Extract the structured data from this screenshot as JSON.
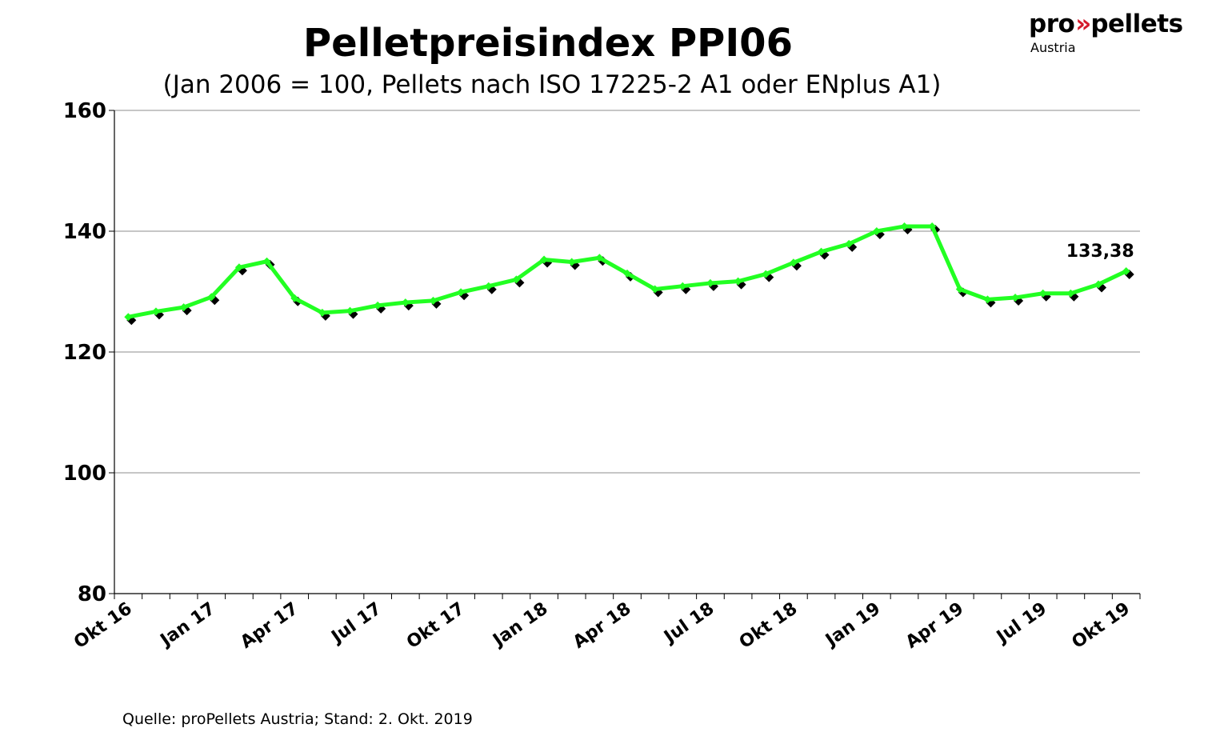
{
  "header": {
    "title": "Pelletpreisindex PPI06",
    "subtitle": "(Jan 2006 = 100, Pellets nach ISO 17225-2 A1 oder ENplus A1)"
  },
  "logo": {
    "part1": "pro",
    "mark": "»",
    "part2": "pellets",
    "sub": "Austria",
    "accent_color": "#d4192a"
  },
  "footer": {
    "source": "Quelle: proPellets Austria; Stand: 2. Okt. 2019"
  },
  "chart_data": {
    "type": "line",
    "title": "Pelletpreisindex PPI06",
    "subtitle": "(Jan 2006 = 100, Pellets nach ISO 17225-2 A1 oder ENplus A1)",
    "ylim": [
      80,
      160
    ],
    "yticks": [
      "80",
      "100",
      "120",
      "140",
      "160"
    ],
    "grid": true,
    "x_tick_labels": [
      "Okt 16",
      "Jan 17",
      "Apr 17",
      "Jul 17",
      "Okt 17",
      "Jan 18",
      "Apr 18",
      "Jul 18",
      "Okt 18",
      "Jan 19",
      "Apr 19",
      "Jul 19",
      "Okt 19"
    ],
    "line_color": "#22ff22",
    "marker_color": "#000000",
    "series": [
      {
        "values": [
          125.8,
          126.7,
          127.4,
          129.1,
          134.0,
          135.0,
          128.9,
          126.5,
          126.8,
          127.7,
          128.2,
          128.5,
          129.9,
          130.9,
          132.0,
          135.3,
          134.9,
          135.6,
          133.0,
          130.4,
          130.9,
          131.4,
          131.7,
          132.9,
          134.8,
          136.6,
          137.9,
          140.0,
          140.8,
          140.8,
          130.4,
          128.7,
          129.0,
          129.7,
          129.7,
          131.2,
          133.38
        ]
      }
    ],
    "annotations": [
      {
        "text": "133,38",
        "index": 36
      }
    ]
  }
}
